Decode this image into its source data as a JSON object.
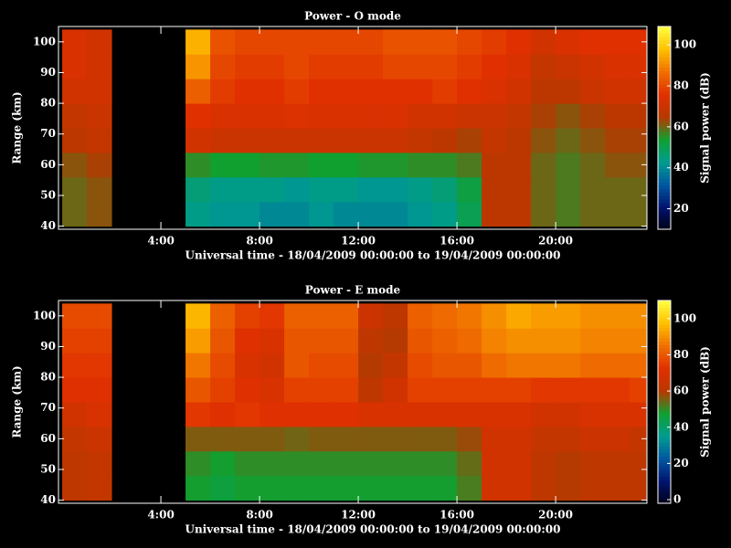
{
  "chart_data": [
    {
      "type": "heatmap",
      "title": "Power - O mode",
      "xlabel": "Universal time - 18/04/2009 00:00:00 to 19/04/2009 00:00:00",
      "ylabel": "Range (km)",
      "colorbar_label": "Signal power (dB)",
      "xlim": [
        -0.15,
        23.7
      ],
      "xticks": [
        {
          "value": 4,
          "label": "4:00"
        },
        {
          "value": 8,
          "label": "8:00"
        },
        {
          "value": 12,
          "label": "12:00"
        },
        {
          "value": 16,
          "label": "16:00"
        },
        {
          "value": 20,
          "label": "20:00"
        }
      ],
      "ylim": [
        39,
        105
      ],
      "yticks": [
        40,
        50,
        60,
        70,
        80,
        90,
        100
      ],
      "zlim": [
        10,
        109
      ],
      "zticks": [
        20,
        40,
        60,
        80,
        100
      ],
      "colormap": [
        "#000018",
        "#001470",
        "#0058a0",
        "#009c90",
        "#10a030",
        "#b83800",
        "#e03000",
        "#f07000",
        "#ffc000",
        "#ffff40"
      ],
      "xbins": [
        0,
        1,
        2,
        3,
        4,
        5,
        6,
        7,
        8,
        9,
        10,
        11,
        12,
        13,
        14,
        15,
        16,
        17,
        18,
        19,
        20,
        21,
        22,
        23,
        24
      ],
      "ybins": [
        40,
        48,
        56,
        64,
        72,
        80,
        88,
        96,
        104
      ],
      "z": [
        [
          60,
          62,
          null,
          null,
          null,
          44,
          42,
          42,
          40,
          40,
          42,
          40,
          40,
          40,
          42,
          44,
          50,
          66,
          66,
          60,
          58,
          60,
          60,
          60
        ],
        [
          60,
          62,
          null,
          null,
          null,
          46,
          44,
          44,
          44,
          42,
          44,
          44,
          42,
          42,
          44,
          46,
          52,
          66,
          66,
          60,
          58,
          60,
          60,
          60
        ],
        [
          62,
          64,
          null,
          null,
          null,
          56,
          54,
          54,
          55,
          55,
          54,
          54,
          55,
          55,
          56,
          56,
          58,
          66,
          66,
          60,
          58,
          60,
          62,
          62
        ],
        [
          66,
          68,
          null,
          null,
          null,
          72,
          70,
          70,
          70,
          70,
          70,
          70,
          70,
          70,
          68,
          66,
          64,
          68,
          66,
          62,
          60,
          62,
          64,
          64
        ],
        [
          68,
          70,
          null,
          null,
          null,
          76,
          74,
          74,
          74,
          75,
          74,
          74,
          74,
          74,
          72,
          72,
          70,
          70,
          68,
          64,
          62,
          64,
          66,
          66
        ],
        [
          72,
          72,
          null,
          null,
          null,
          84,
          78,
          76,
          76,
          78,
          76,
          76,
          76,
          76,
          76,
          78,
          76,
          74,
          72,
          66,
          66,
          70,
          72,
          72
        ],
        [
          74,
          72,
          null,
          null,
          null,
          92,
          80,
          78,
          78,
          80,
          78,
          78,
          78,
          80,
          80,
          80,
          78,
          76,
          74,
          68,
          70,
          72,
          74,
          74
        ],
        [
          74,
          72,
          null,
          null,
          null,
          96,
          82,
          80,
          80,
          80,
          80,
          80,
          80,
          82,
          82,
          82,
          80,
          78,
          76,
          72,
          74,
          76,
          76,
          76
        ]
      ]
    },
    {
      "type": "heatmap",
      "title": "Power - E mode",
      "xlabel": "Universal time - 18/04/2009 00:00:00 to 19/04/2009 00:00:00",
      "ylabel": "Range (km)",
      "colorbar_label": "Signal power (dB)",
      "xlim": [
        -0.15,
        23.7
      ],
      "xticks": [
        {
          "value": 4,
          "label": "4:00"
        },
        {
          "value": 8,
          "label": "8:00"
        },
        {
          "value": 12,
          "label": "12:00"
        },
        {
          "value": 16,
          "label": "16:00"
        },
        {
          "value": 20,
          "label": "20:00"
        }
      ],
      "ylim": [
        39,
        105
      ],
      "yticks": [
        40,
        50,
        60,
        70,
        80,
        90,
        100
      ],
      "zlim": [
        -2,
        110
      ],
      "zticks": [
        0,
        20,
        40,
        60,
        80,
        100
      ],
      "colormap": [
        "#000018",
        "#001470",
        "#0058a0",
        "#009c90",
        "#10a030",
        "#b83800",
        "#e03000",
        "#f07000",
        "#ffc000",
        "#ffff40"
      ],
      "xbins": [
        0,
        1,
        2,
        3,
        4,
        5,
        6,
        7,
        8,
        9,
        10,
        11,
        12,
        13,
        14,
        15,
        16,
        17,
        18,
        19,
        20,
        21,
        22,
        23,
        24
      ],
      "ybins": [
        40,
        48,
        56,
        64,
        72,
        80,
        88,
        96,
        104
      ],
      "z": [
        [
          62,
          64,
          null,
          null,
          null,
          48,
          46,
          48,
          48,
          48,
          48,
          48,
          48,
          48,
          48,
          48,
          52,
          68,
          68,
          62,
          60,
          62,
          62,
          62
        ],
        [
          62,
          64,
          null,
          null,
          null,
          50,
          48,
          50,
          50,
          50,
          50,
          50,
          50,
          50,
          50,
          50,
          54,
          68,
          68,
          62,
          60,
          62,
          62,
          62
        ],
        [
          64,
          66,
          null,
          null,
          null,
          56,
          56,
          56,
          56,
          55,
          56,
          56,
          56,
          56,
          56,
          56,
          58,
          68,
          68,
          64,
          64,
          66,
          66,
          64
        ],
        [
          68,
          70,
          null,
          null,
          null,
          74,
          72,
          74,
          72,
          72,
          72,
          72,
          70,
          70,
          70,
          70,
          70,
          70,
          70,
          68,
          68,
          70,
          70,
          70
        ],
        [
          72,
          72,
          null,
          null,
          null,
          80,
          76,
          72,
          70,
          76,
          76,
          76,
          62,
          68,
          76,
          76,
          76,
          76,
          76,
          74,
          74,
          74,
          74,
          76
        ],
        [
          74,
          74,
          null,
          null,
          null,
          86,
          78,
          70,
          68,
          80,
          78,
          78,
          60,
          64,
          78,
          80,
          80,
          84,
          86,
          86,
          86,
          84,
          84,
          84
        ],
        [
          76,
          76,
          null,
          null,
          null,
          92,
          80,
          72,
          70,
          80,
          80,
          80,
          62,
          60,
          80,
          82,
          84,
          88,
          90,
          90,
          90,
          88,
          88,
          88
        ],
        [
          78,
          78,
          null,
          null,
          null,
          96,
          82,
          76,
          74,
          82,
          82,
          82,
          66,
          62,
          82,
          84,
          86,
          90,
          94,
          92,
          92,
          90,
          90,
          90
        ]
      ]
    }
  ]
}
